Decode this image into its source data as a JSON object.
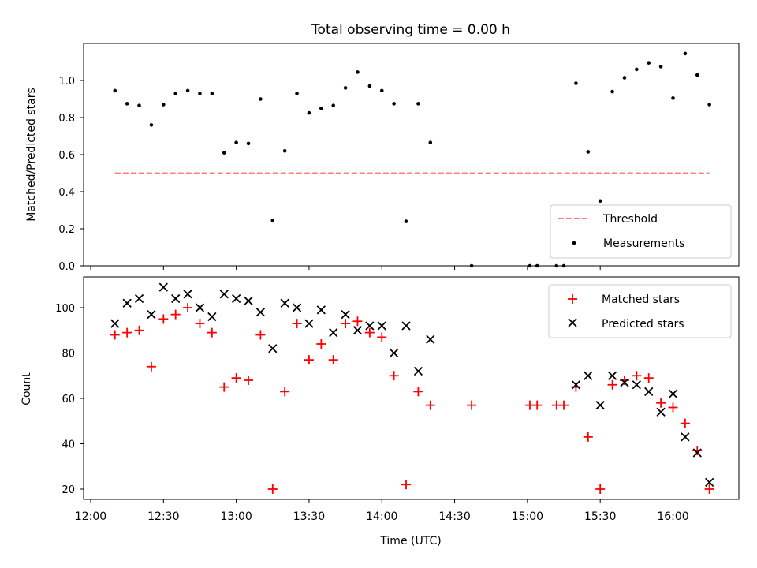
{
  "chart_data": [
    {
      "type": "scatter",
      "title": "Total observing time = 0.00 h",
      "ylabel": "Matched/Predicted stars",
      "xlabel": "",
      "ylim": [
        0,
        1.2
      ],
      "yticks": [
        "0.0",
        "0.2",
        "0.4",
        "0.6",
        "0.8",
        "1.0"
      ],
      "legend": {
        "placement": "bottom-right",
        "entries": [
          "Threshold",
          "Measurements"
        ]
      },
      "threshold": {
        "name": "Threshold",
        "value": 0.5,
        "x_range": [
          "12:10",
          "16:15"
        ],
        "color": "#ff8080"
      },
      "series": [
        {
          "name": "Measurements",
          "color": "#000000",
          "points": [
            [
              "12:10",
              0.945
            ],
            [
              "12:15",
              0.875
            ],
            [
              "12:20",
              0.865
            ],
            [
              "12:25",
              0.76
            ],
            [
              "12:30",
              0.87
            ],
            [
              "12:35",
              0.93
            ],
            [
              "12:40",
              0.945
            ],
            [
              "12:45",
              0.93
            ],
            [
              "12:50",
              0.93
            ],
            [
              "12:55",
              0.61
            ],
            [
              "13:00",
              0.665
            ],
            [
              "13:05",
              0.66
            ],
            [
              "13:10",
              0.9
            ],
            [
              "13:15",
              0.245
            ],
            [
              "13:20",
              0.62
            ],
            [
              "13:25",
              0.93
            ],
            [
              "13:30",
              0.825
            ],
            [
              "13:35",
              0.85
            ],
            [
              "13:40",
              0.865
            ],
            [
              "13:45",
              0.96
            ],
            [
              "13:50",
              1.045
            ],
            [
              "13:55",
              0.97
            ],
            [
              "14:00",
              0.945
            ],
            [
              "14:05",
              0.875
            ],
            [
              "14:10",
              0.24
            ],
            [
              "14:15",
              0.875
            ],
            [
              "14:20",
              0.665
            ],
            [
              "14:37",
              0.0
            ],
            [
              "15:01",
              0.0
            ],
            [
              "15:04",
              0.0
            ],
            [
              "15:12",
              0.0
            ],
            [
              "15:15",
              0.0
            ],
            [
              "15:20",
              0.985
            ],
            [
              "15:25",
              0.615
            ],
            [
              "15:30",
              0.35
            ],
            [
              "15:35",
              0.94
            ],
            [
              "15:40",
              1.015
            ],
            [
              "15:45",
              1.06
            ],
            [
              "15:50",
              1.095
            ],
            [
              "15:55",
              1.075
            ],
            [
              "16:00",
              0.905
            ],
            [
              "16:05",
              1.145
            ],
            [
              "16:10",
              1.03
            ],
            [
              "16:15",
              0.87
            ]
          ]
        }
      ]
    },
    {
      "type": "scatter",
      "title": "",
      "ylabel": "Count",
      "xlabel": "Time (UTC)",
      "ylim": [
        15,
        115
      ],
      "yticks": [
        "20",
        "40",
        "60",
        "80",
        "100"
      ],
      "xlim": [
        "12:00",
        "16:29"
      ],
      "xticks": [
        "12:00",
        "12:30",
        "13:00",
        "13:30",
        "14:00",
        "14:30",
        "15:00",
        "15:30",
        "16:00"
      ],
      "legend": {
        "placement": "top-right",
        "entries": [
          "Matched stars",
          "Predicted stars"
        ]
      },
      "series": [
        {
          "name": "Matched stars",
          "marker": "+",
          "color": "#ff0000",
          "points": [
            [
              "12:10",
              88
            ],
            [
              "12:15",
              89
            ],
            [
              "12:20",
              90
            ],
            [
              "12:25",
              74
            ],
            [
              "12:30",
              95
            ],
            [
              "12:35",
              97
            ],
            [
              "12:40",
              100
            ],
            [
              "12:45",
              93
            ],
            [
              "12:50",
              89
            ],
            [
              "12:55",
              65
            ],
            [
              "13:00",
              69
            ],
            [
              "13:05",
              68
            ],
            [
              "13:10",
              88
            ],
            [
              "13:15",
              20
            ],
            [
              "13:20",
              63
            ],
            [
              "13:25",
              93
            ],
            [
              "13:30",
              77
            ],
            [
              "13:35",
              84
            ],
            [
              "13:40",
              77
            ],
            [
              "13:45",
              93
            ],
            [
              "13:50",
              94
            ],
            [
              "13:55",
              89
            ],
            [
              "14:00",
              87
            ],
            [
              "14:05",
              70
            ],
            [
              "14:10",
              22
            ],
            [
              "14:15",
              63
            ],
            [
              "14:20",
              57
            ],
            [
              "14:37",
              57
            ],
            [
              "15:01",
              57
            ],
            [
              "15:04",
              57
            ],
            [
              "15:12",
              57
            ],
            [
              "15:15",
              57
            ],
            [
              "15:20",
              65
            ],
            [
              "15:25",
              43
            ],
            [
              "15:30",
              20
            ],
            [
              "15:35",
              66
            ],
            [
              "15:40",
              68
            ],
            [
              "15:45",
              70
            ],
            [
              "15:50",
              69
            ],
            [
              "15:55",
              58
            ],
            [
              "16:00",
              56
            ],
            [
              "16:05",
              49
            ],
            [
              "16:10",
              37
            ],
            [
              "16:15",
              20
            ]
          ]
        },
        {
          "name": "Predicted stars",
          "marker": "x",
          "color": "#000000",
          "points": [
            [
              "12:10",
              93
            ],
            [
              "12:15",
              102
            ],
            [
              "12:20",
              104
            ],
            [
              "12:25",
              97
            ],
            [
              "12:30",
              109
            ],
            [
              "12:35",
              104
            ],
            [
              "12:40",
              106
            ],
            [
              "12:45",
              100
            ],
            [
              "12:50",
              96
            ],
            [
              "12:55",
              106
            ],
            [
              "13:00",
              104
            ],
            [
              "13:05",
              103
            ],
            [
              "13:10",
              98
            ],
            [
              "13:15",
              82
            ],
            [
              "13:20",
              102
            ],
            [
              "13:25",
              100
            ],
            [
              "13:30",
              93
            ],
            [
              "13:35",
              99
            ],
            [
              "13:40",
              89
            ],
            [
              "13:45",
              97
            ],
            [
              "13:50",
              90
            ],
            [
              "13:55",
              92
            ],
            [
              "14:00",
              92
            ],
            [
              "14:05",
              80
            ],
            [
              "14:10",
              92
            ],
            [
              "14:15",
              72
            ],
            [
              "14:20",
              86
            ],
            [
              "15:20",
              66
            ],
            [
              "15:25",
              70
            ],
            [
              "15:30",
              57
            ],
            [
              "15:35",
              70
            ],
            [
              "15:40",
              67
            ],
            [
              "15:45",
              66
            ],
            [
              "15:50",
              63
            ],
            [
              "15:55",
              54
            ],
            [
              "16:00",
              62
            ],
            [
              "16:05",
              43
            ],
            [
              "16:10",
              36
            ],
            [
              "16:15",
              23
            ]
          ]
        }
      ]
    }
  ]
}
